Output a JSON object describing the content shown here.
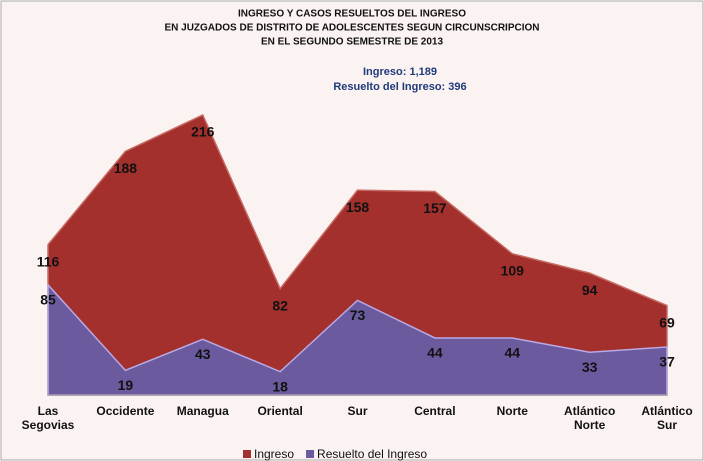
{
  "chart_data": {
    "type": "area",
    "title": [
      "INGRESO Y CASOS RESUELTOS DEL INGRESO",
      "EN JUZGADOS DE DISTRITO DE ADOLESCENTES SEGUN CIRCUNSCRIPCION",
      "EN EL SEGUNDO SEMESTRE DE 2013"
    ],
    "annotations": [
      "Ingreso: 1,189",
      "Resuelto del Ingreso: 396"
    ],
    "categories": [
      "Las Segovias",
      "Occidente",
      "Managua",
      "Oriental",
      "Sur",
      "Central",
      "Norte",
      "Atlántico Norte",
      "Atlántico Sur"
    ],
    "series": [
      {
        "name": "Ingreso",
        "color": "#a3302c",
        "values": [
          116,
          188,
          216,
          82,
          158,
          157,
          109,
          94,
          69
        ]
      },
      {
        "name": "Resuelto del Ingreso",
        "color": "#6b5b9e",
        "values": [
          85,
          19,
          43,
          18,
          73,
          44,
          44,
          33,
          37
        ]
      }
    ],
    "ylim": [
      0,
      216
    ]
  }
}
